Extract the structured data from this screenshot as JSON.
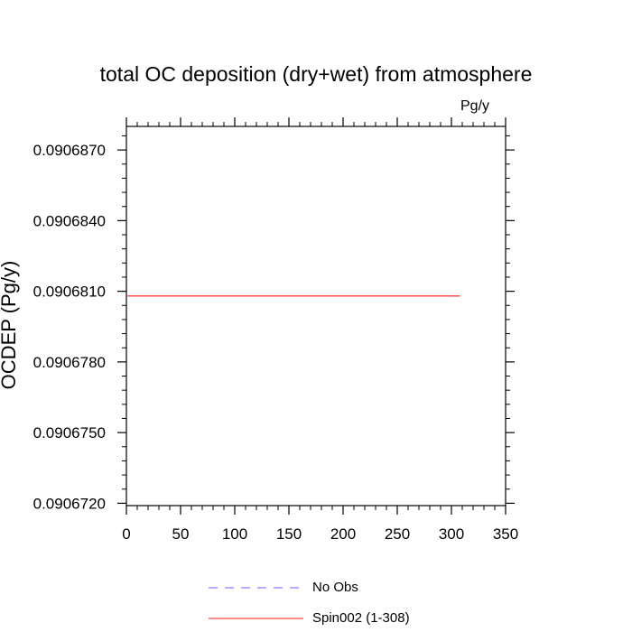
{
  "chart_data": {
    "type": "line",
    "title": "total OC deposition (dry+wet) from atmosphere",
    "units": "Pg/y",
    "ylabel": "OCDEP  (Pg/y)",
    "xlabel": "",
    "xlim": [
      0,
      350
    ],
    "ylim": [
      0.0906719,
      0.090688
    ],
    "x_ticks": [
      "0",
      "50",
      "100",
      "150",
      "200",
      "250",
      "300",
      "350"
    ],
    "y_ticks": [
      {
        "value": 0.090672,
        "label": "0.0906720"
      },
      {
        "value": 0.090675,
        "label": "0.0906750"
      },
      {
        "value": 0.090678,
        "label": "0.0906780"
      },
      {
        "value": 0.090681,
        "label": "0.0906810"
      },
      {
        "value": 0.090684,
        "label": "0.0906840"
      },
      {
        "value": 0.090687,
        "label": "0.0906870"
      }
    ],
    "grid": false,
    "legend_position": "bottom-center",
    "series": [
      {
        "name": "No Obs",
        "color": "#8080ff",
        "dash": "dashed",
        "points": []
      },
      {
        "name": "Spin002 (1-308)",
        "color": "#ff4040",
        "dash": "solid",
        "points": [
          [
            1,
            0.0906808
          ],
          [
            308,
            0.0906808
          ]
        ]
      }
    ]
  }
}
